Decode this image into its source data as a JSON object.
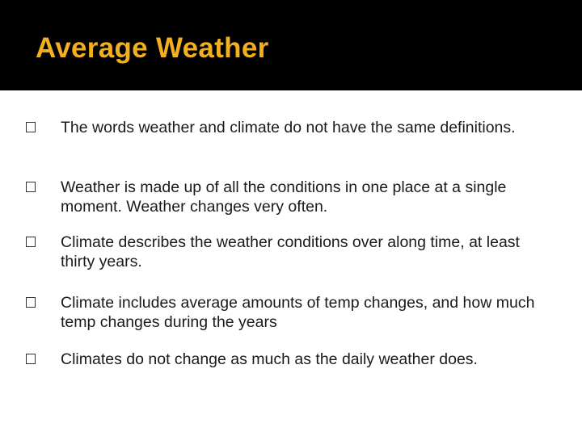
{
  "header": {
    "title": "Average Weather"
  },
  "bullets": [
    "The words weather and climate do not have the same definitions.",
    "Weather is made up of all the conditions in one place at a single moment. Weather changes very often.",
    "Climate describes the weather conditions over along time, at least thirty years.",
    "Climate includes average amounts of temp changes, and how much temp changes during the years",
    "Climates do not change as much as the daily weather does."
  ]
}
